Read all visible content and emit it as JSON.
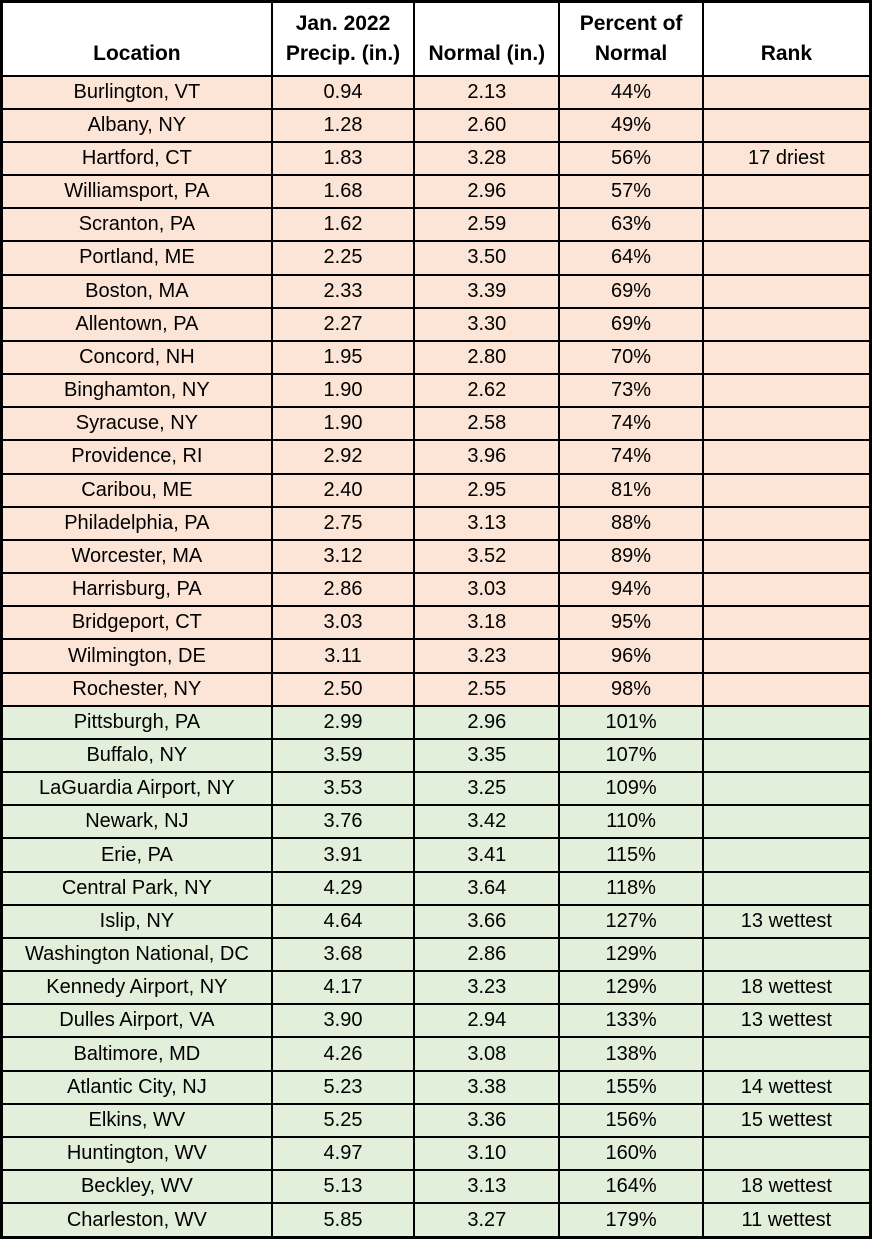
{
  "colors": {
    "below_normal_bg": "#FCE4D6",
    "above_normal_bg": "#E2EFDA",
    "header_bg": "#FFFFFF",
    "border": "#000000",
    "text": "#000000"
  },
  "chart_data": {
    "type": "table",
    "columns": [
      "Location",
      "Jan. 2022 Precip. (in.)",
      "Normal (in.)",
      "Percent of Normal",
      "Rank"
    ],
    "header_display": [
      "Location",
      "Jan. 2022\nPrecip. (in.)",
      "Normal (in.)",
      "Percent of\nNormal",
      "Rank"
    ],
    "legend": {
      "below_normal": "percent of normal under 100% (peach rows)",
      "above_normal": "percent of normal 100% or greater (green rows)"
    },
    "rows": [
      {
        "location": "Burlington, VT",
        "precip": "0.94",
        "normal": "2.13",
        "percent": "44%",
        "rank": "",
        "category": "below_normal"
      },
      {
        "location": "Albany, NY",
        "precip": "1.28",
        "normal": "2.60",
        "percent": "49%",
        "rank": "",
        "category": "below_normal"
      },
      {
        "location": "Hartford, CT",
        "precip": "1.83",
        "normal": "3.28",
        "percent": "56%",
        "rank": "17 driest",
        "category": "below_normal"
      },
      {
        "location": "Williamsport, PA",
        "precip": "1.68",
        "normal": "2.96",
        "percent": "57%",
        "rank": "",
        "category": "below_normal"
      },
      {
        "location": "Scranton, PA",
        "precip": "1.62",
        "normal": "2.59",
        "percent": "63%",
        "rank": "",
        "category": "below_normal"
      },
      {
        "location": "Portland, ME",
        "precip": "2.25",
        "normal": "3.50",
        "percent": "64%",
        "rank": "",
        "category": "below_normal"
      },
      {
        "location": "Boston, MA",
        "precip": "2.33",
        "normal": "3.39",
        "percent": "69%",
        "rank": "",
        "category": "below_normal"
      },
      {
        "location": "Allentown, PA",
        "precip": "2.27",
        "normal": "3.30",
        "percent": "69%",
        "rank": "",
        "category": "below_normal"
      },
      {
        "location": "Concord, NH",
        "precip": "1.95",
        "normal": "2.80",
        "percent": "70%",
        "rank": "",
        "category": "below_normal"
      },
      {
        "location": "Binghamton, NY",
        "precip": "1.90",
        "normal": "2.62",
        "percent": "73%",
        "rank": "",
        "category": "below_normal"
      },
      {
        "location": "Syracuse, NY",
        "precip": "1.90",
        "normal": "2.58",
        "percent": "74%",
        "rank": "",
        "category": "below_normal"
      },
      {
        "location": "Providence, RI",
        "precip": "2.92",
        "normal": "3.96",
        "percent": "74%",
        "rank": "",
        "category": "below_normal"
      },
      {
        "location": "Caribou, ME",
        "precip": "2.40",
        "normal": "2.95",
        "percent": "81%",
        "rank": "",
        "category": "below_normal"
      },
      {
        "location": "Philadelphia, PA",
        "precip": "2.75",
        "normal": "3.13",
        "percent": "88%",
        "rank": "",
        "category": "below_normal"
      },
      {
        "location": "Worcester, MA",
        "precip": "3.12",
        "normal": "3.52",
        "percent": "89%",
        "rank": "",
        "category": "below_normal"
      },
      {
        "location": "Harrisburg, PA",
        "precip": "2.86",
        "normal": "3.03",
        "percent": "94%",
        "rank": "",
        "category": "below_normal"
      },
      {
        "location": "Bridgeport, CT",
        "precip": "3.03",
        "normal": "3.18",
        "percent": "95%",
        "rank": "",
        "category": "below_normal"
      },
      {
        "location": "Wilmington, DE",
        "precip": "3.11",
        "normal": "3.23",
        "percent": "96%",
        "rank": "",
        "category": "below_normal"
      },
      {
        "location": "Rochester, NY",
        "precip": "2.50",
        "normal": "2.55",
        "percent": "98%",
        "rank": "",
        "category": "below_normal"
      },
      {
        "location": "Pittsburgh, PA",
        "precip": "2.99",
        "normal": "2.96",
        "percent": "101%",
        "rank": "",
        "category": "above_normal"
      },
      {
        "location": "Buffalo, NY",
        "precip": "3.59",
        "normal": "3.35",
        "percent": "107%",
        "rank": "",
        "category": "above_normal"
      },
      {
        "location": "LaGuardia Airport, NY",
        "precip": "3.53",
        "normal": "3.25",
        "percent": "109%",
        "rank": "",
        "category": "above_normal"
      },
      {
        "location": "Newark, NJ",
        "precip": "3.76",
        "normal": "3.42",
        "percent": "110%",
        "rank": "",
        "category": "above_normal"
      },
      {
        "location": "Erie, PA",
        "precip": "3.91",
        "normal": "3.41",
        "percent": "115%",
        "rank": "",
        "category": "above_normal"
      },
      {
        "location": "Central Park, NY",
        "precip": "4.29",
        "normal": "3.64",
        "percent": "118%",
        "rank": "",
        "category": "above_normal"
      },
      {
        "location": "Islip, NY",
        "precip": "4.64",
        "normal": "3.66",
        "percent": "127%",
        "rank": "13 wettest",
        "category": "above_normal"
      },
      {
        "location": "Washington National, DC",
        "precip": "3.68",
        "normal": "2.86",
        "percent": "129%",
        "rank": "",
        "category": "above_normal"
      },
      {
        "location": "Kennedy Airport, NY",
        "precip": "4.17",
        "normal": "3.23",
        "percent": "129%",
        "rank": "18 wettest",
        "category": "above_normal"
      },
      {
        "location": "Dulles Airport, VA",
        "precip": "3.90",
        "normal": "2.94",
        "percent": "133%",
        "rank": "13 wettest",
        "category": "above_normal"
      },
      {
        "location": "Baltimore, MD",
        "precip": "4.26",
        "normal": "3.08",
        "percent": "138%",
        "rank": "",
        "category": "above_normal"
      },
      {
        "location": "Atlantic City, NJ",
        "precip": "5.23",
        "normal": "3.38",
        "percent": "155%",
        "rank": "14 wettest",
        "category": "above_normal"
      },
      {
        "location": "Elkins, WV",
        "precip": "5.25",
        "normal": "3.36",
        "percent": "156%",
        "rank": "15 wettest",
        "category": "above_normal"
      },
      {
        "location": "Huntington, WV",
        "precip": "4.97",
        "normal": "3.10",
        "percent": "160%",
        "rank": "",
        "category": "above_normal"
      },
      {
        "location": "Beckley, WV",
        "precip": "5.13",
        "normal": "3.13",
        "percent": "164%",
        "rank": "18 wettest",
        "category": "above_normal"
      },
      {
        "location": "Charleston, WV",
        "precip": "5.85",
        "normal": "3.27",
        "percent": "179%",
        "rank": "11 wettest",
        "category": "above_normal"
      }
    ]
  }
}
